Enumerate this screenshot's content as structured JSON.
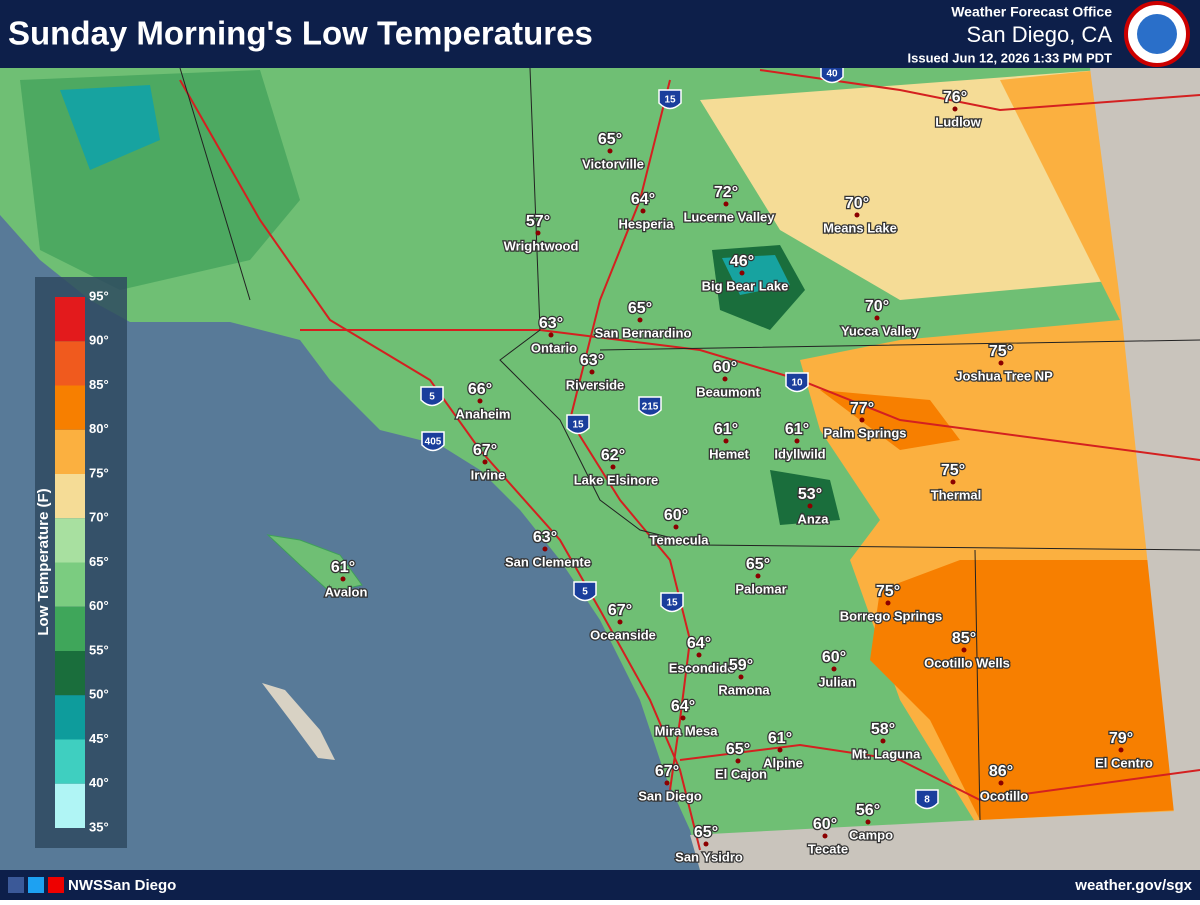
{
  "header": {
    "title": "Sunday Morning's Low Temperatures",
    "office": "Weather Forecast Office",
    "location": "San Diego, CA",
    "issued": "Issued Jun 12, 2026 1:33 PM PDT"
  },
  "legend": {
    "title": "Low Temperature (F)",
    "ticks": [
      "95°",
      "90°",
      "85°",
      "80°",
      "75°",
      "70°",
      "65°",
      "60°",
      "55°",
      "50°",
      "45°",
      "40°",
      "35°"
    ]
  },
  "cities": [
    {
      "temp": "65°",
      "name": "Victorville"
    },
    {
      "temp": "64°",
      "name": "Hesperia"
    },
    {
      "temp": "72°",
      "name": "Lucerne Valley"
    },
    {
      "temp": "70°",
      "name": "Means Lake"
    },
    {
      "temp": "76°",
      "name": "Ludlow"
    },
    {
      "temp": "57°",
      "name": "Wrightwood"
    },
    {
      "temp": "46°",
      "name": "Big Bear Lake"
    },
    {
      "temp": "65°",
      "name": "San Bernardino"
    },
    {
      "temp": "70°",
      "name": "Yucca Valley"
    },
    {
      "temp": "63°",
      "name": "Ontario"
    },
    {
      "temp": "63°",
      "name": "Riverside"
    },
    {
      "temp": "60°",
      "name": "Beaumont"
    },
    {
      "temp": "75°",
      "name": "Joshua Tree NP"
    },
    {
      "temp": "66°",
      "name": "Anaheim"
    },
    {
      "temp": "77°",
      "name": "Palm Springs"
    },
    {
      "temp": "61°",
      "name": "Hemet"
    },
    {
      "temp": "61°",
      "name": "Idyllwild"
    },
    {
      "temp": "67°",
      "name": "Irvine"
    },
    {
      "temp": "62°",
      "name": "Lake Elsinore"
    },
    {
      "temp": "75°",
      "name": "Thermal"
    },
    {
      "temp": "53°",
      "name": "Anza"
    },
    {
      "temp": "60°",
      "name": "Temecula"
    },
    {
      "temp": "63°",
      "name": "San Clemente"
    },
    {
      "temp": "61°",
      "name": "Avalon"
    },
    {
      "temp": "65°",
      "name": "Palomar"
    },
    {
      "temp": "75°",
      "name": "Borrego Springs"
    },
    {
      "temp": "67°",
      "name": "Oceanside"
    },
    {
      "temp": "85°",
      "name": "Ocotillo Wells"
    },
    {
      "temp": "64°",
      "name": "Escondido"
    },
    {
      "temp": "59°",
      "name": "Ramona"
    },
    {
      "temp": "60°",
      "name": "Julian"
    },
    {
      "temp": "64°",
      "name": "Mira Mesa"
    },
    {
      "temp": "58°",
      "name": "Mt. Laguna"
    },
    {
      "temp": "79°",
      "name": "El Centro"
    },
    {
      "temp": "65°",
      "name": "El Cajon"
    },
    {
      "temp": "61°",
      "name": "Alpine"
    },
    {
      "temp": "67°",
      "name": "San Diego"
    },
    {
      "temp": "86°",
      "name": "Ocotillo"
    },
    {
      "temp": "56°",
      "name": "Campo"
    },
    {
      "temp": "60°",
      "name": "Tecate"
    },
    {
      "temp": "65°",
      "name": "San Ysidro"
    }
  ],
  "interstates": [
    "15",
    "40",
    "5",
    "405",
    "215",
    "15",
    "10",
    "5",
    "15",
    "8"
  ],
  "footer": {
    "social": "NWSSan Diego",
    "url": "weather.gov/sgx"
  }
}
